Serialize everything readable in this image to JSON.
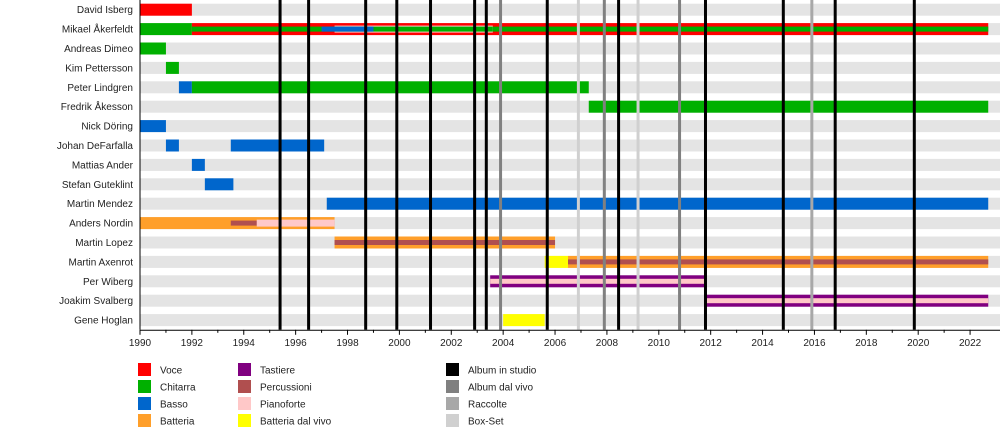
{
  "chart_data": {
    "type": "timeline",
    "title": "",
    "x_range": [
      1990,
      2022.7
    ],
    "ticks": [
      1990,
      1992,
      1994,
      1996,
      1998,
      2000,
      2002,
      2004,
      2006,
      2008,
      2010,
      2012,
      2014,
      2016,
      2018,
      2020,
      2022
    ],
    "colors": {
      "Voce": "#ff0000",
      "Chitarra": "#00b000",
      "Basso": "#0066cc",
      "Batteria": "#ff9f2a",
      "Tastiere": "#800080",
      "Percussioni": "#b04f4f",
      "Pianoforte": "#ffc8c8",
      "Batteria dal vivo": "#ffff00",
      "Album in studio": "#000000",
      "Album dal vivo": "#808080",
      "Raccolte": "#a8a8a8",
      "Box-Set": "#d0d0d0"
    },
    "members": [
      {
        "name": "David Isberg",
        "roles": [
          {
            "role": "Voce",
            "start": 1990.0,
            "end": 1992.0
          }
        ]
      },
      {
        "name": "Mikael Åkerfeldt",
        "roles": [
          {
            "role": "Chitarra",
            "start": 1990.0,
            "end": 1992.0
          },
          {
            "role": "Voce",
            "start": 1992.0,
            "end": 2022.7
          },
          {
            "role": "Chitarra",
            "start": 1992.0,
            "end": 2022.7,
            "layer": "inner"
          },
          {
            "role": "Pianoforte",
            "start": 1997.5,
            "end": 2003.6,
            "layer": "inner-wide"
          },
          {
            "role": "Chitarra",
            "start": 1997.5,
            "end": 2003.6,
            "layer": "inner"
          },
          {
            "role": "Basso",
            "start": 1997.0,
            "end": 1999.0,
            "layer": "inner-accent"
          }
        ]
      },
      {
        "name": "Andreas Dimeo",
        "roles": [
          {
            "role": "Chitarra",
            "start": 1990.0,
            "end": 1991.0
          }
        ]
      },
      {
        "name": "Kim Pettersson",
        "roles": [
          {
            "role": "Chitarra",
            "start": 1991.0,
            "end": 1991.5
          }
        ]
      },
      {
        "name": "Peter Lindgren",
        "roles": [
          {
            "role": "Basso",
            "start": 1991.5,
            "end": 1992.0
          },
          {
            "role": "Chitarra",
            "start": 1992.0,
            "end": 2007.3
          }
        ]
      },
      {
        "name": "Fredrik Åkesson",
        "roles": [
          {
            "role": "Chitarra",
            "start": 2007.3,
            "end": 2022.7
          }
        ]
      },
      {
        "name": "Nick Döring",
        "roles": [
          {
            "role": "Basso",
            "start": 1990.0,
            "end": 1991.0
          }
        ]
      },
      {
        "name": "Johan DeFarfalla",
        "roles": [
          {
            "role": "Basso",
            "start": 1991.0,
            "end": 1991.5
          },
          {
            "role": "Basso",
            "start": 1993.5,
            "end": 1997.1
          }
        ]
      },
      {
        "name": "Mattias Ander",
        "roles": [
          {
            "role": "Basso",
            "start": 1992.0,
            "end": 1992.5
          }
        ]
      },
      {
        "name": "Stefan Guteklint",
        "roles": [
          {
            "role": "Basso",
            "start": 1992.5,
            "end": 1993.6
          }
        ]
      },
      {
        "name": "Martin Mendez",
        "roles": [
          {
            "role": "Basso",
            "start": 1997.2,
            "end": 2022.7
          }
        ]
      },
      {
        "name": "Anders Nordin",
        "roles": [
          {
            "role": "Batteria",
            "start": 1990.0,
            "end": 1997.5
          },
          {
            "role": "Percussioni",
            "start": 1993.5,
            "end": 1997.5,
            "layer": "inner"
          },
          {
            "role": "Pianoforte",
            "start": 1994.5,
            "end": 1997.5,
            "layer": "inner-wide"
          }
        ]
      },
      {
        "name": "Martin Lopez",
        "roles": [
          {
            "role": "Batteria",
            "start": 1997.5,
            "end": 2006.0
          },
          {
            "role": "Percussioni",
            "start": 1997.5,
            "end": 2006.0,
            "layer": "inner"
          }
        ]
      },
      {
        "name": "Martin Axenrot",
        "roles": [
          {
            "role": "Batteria dal vivo",
            "start": 2005.6,
            "end": 2006.5
          },
          {
            "role": "Batteria",
            "start": 2006.5,
            "end": 2022.7
          },
          {
            "role": "Percussioni",
            "start": 2006.5,
            "end": 2022.7,
            "layer": "inner"
          }
        ]
      },
      {
        "name": "Per Wiberg",
        "roles": [
          {
            "role": "Tastiere",
            "start": 2003.5,
            "end": 2011.8
          },
          {
            "role": "Pianoforte",
            "start": 2003.5,
            "end": 2011.8,
            "layer": "inner"
          }
        ]
      },
      {
        "name": "Joakim Svalberg",
        "roles": [
          {
            "role": "Tastiere",
            "start": 2011.8,
            "end": 2022.7
          },
          {
            "role": "Pianoforte",
            "start": 2011.8,
            "end": 2022.7,
            "layer": "inner"
          }
        ]
      },
      {
        "name": "Gene Hoglan",
        "roles": [
          {
            "role": "Batteria dal vivo",
            "start": 2004.0,
            "end": 2005.6
          }
        ]
      }
    ],
    "events": [
      {
        "type": "Album in studio",
        "year": 1995.4
      },
      {
        "type": "Album in studio",
        "year": 1996.5
      },
      {
        "type": "Album in studio",
        "year": 1998.7
      },
      {
        "type": "Album in studio",
        "year": 1999.9
      },
      {
        "type": "Album in studio",
        "year": 2001.2
      },
      {
        "type": "Album in studio",
        "year": 2002.9
      },
      {
        "type": "Album in studio",
        "year": 2003.35
      },
      {
        "type": "Album dal vivo",
        "year": 2003.9
      },
      {
        "type": "Album in studio",
        "year": 2005.7
      },
      {
        "type": "Box-Set",
        "year": 2006.9
      },
      {
        "type": "Album dal vivo",
        "year": 2007.9
      },
      {
        "type": "Album in studio",
        "year": 2008.45
      },
      {
        "type": "Box-Set",
        "year": 2009.2
      },
      {
        "type": "Album dal vivo",
        "year": 2010.8
      },
      {
        "type": "Album in studio",
        "year": 2011.8
      },
      {
        "type": "Album in studio",
        "year": 2014.8
      },
      {
        "type": "Raccolte",
        "year": 2015.9
      },
      {
        "type": "Album in studio",
        "year": 2016.8
      },
      {
        "type": "Album in studio",
        "year": 2019.85
      }
    ],
    "legend": {
      "columns": [
        [
          "Voce",
          "Chitarra",
          "Basso",
          "Batteria"
        ],
        [
          "Tastiere",
          "Percussioni",
          "Pianoforte",
          "Batteria dal vivo"
        ],
        [
          "Album in studio",
          "Album dal vivo",
          "Raccolte",
          "Box-Set"
        ]
      ]
    }
  }
}
